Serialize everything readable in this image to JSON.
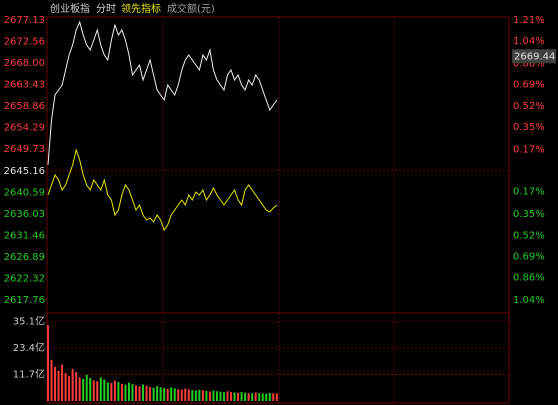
{
  "chart_data": [
    {
      "type": "line",
      "title": "创业板指",
      "subtitle": "分时",
      "current_price": 2669.44,
      "up_color": "#ff3c3c",
      "down_color": "#22cc22",
      "flat_color": "#e0e0e0",
      "ylim": [
        2617.76,
        2677.13
      ],
      "yticks": [
        2617.76,
        2622.32,
        2626.89,
        2631.46,
        2636.03,
        2640.59,
        2645.16,
        2649.73,
        2654.29,
        2658.86,
        2663.43,
        {
          "value": 2668,
          "label": "2668.00"
        },
        2672.56,
        2677.13
      ],
      "y2lim": [
        -1.04,
        1.21
      ],
      "y2ticks": [
        {
          "value": -1.04,
          "label": "1.04%"
        },
        {
          "value": -0.86,
          "label": "0.86%"
        },
        {
          "value": -0.69,
          "label": "0.69%"
        },
        {
          "value": -0.52,
          "label": "0.52%"
        },
        {
          "value": -0.35,
          "label": "0.35%"
        },
        {
          "value": -0.17,
          "label": "0.17%"
        },
        {
          "value": 0.17,
          "label": "0.17%"
        },
        {
          "value": 0.35,
          "label": "0.35%"
        },
        {
          "value": 0.52,
          "label": "0.52%"
        },
        {
          "value": 0.69,
          "label": "0.69%"
        },
        {
          "value": 0.86,
          "label": "0.86%"
        },
        {
          "value": 1.04,
          "label": "1.04%"
        },
        {
          "value": 1.21,
          "label": "1.21%"
        }
      ],
      "series": [
        {
          "color": "#f0f0f0",
          "values": [
            2646.39,
            2655.93,
            2661.23,
            2662.29,
            2663.35,
            2666.53,
            2669.71,
            2671.83,
            2675.01,
            2676.71,
            2673.95,
            2671.83,
            2670.77,
            2672.89,
            2675.01,
            2671.83,
            2669.71,
            2668.65,
            2672.89,
            2676.07,
            2673.95,
            2675.01,
            2672.89,
            2669.71,
            2665.47,
            2666.53,
            2667.59,
            2664.41,
            2666.53,
            2668.65,
            2665.47,
            2662.29,
            2661.23,
            2660.17,
            2663.35,
            2662.29,
            2661.23,
            2663.35,
            2666.53,
            2668.65,
            2669.71,
            2668.65,
            2667.59,
            2666.53,
            2669.71,
            2668.65,
            2670.77,
            2666.53,
            2664.41,
            2663.35,
            2662.29,
            2665.47,
            2666.53,
            2664.41,
            2665.47,
            2663.35,
            2662.29,
            2664.41,
            2663.35,
            2665.47,
            2664.41,
            2662.29,
            2660.17,
            2658.05,
            2659.11,
            2660.17
          ]
        },
        {
          "name": "领先指标",
          "color": "#e8e800",
          "values": [
            2640.03,
            2642.15,
            2644.27,
            2643.21,
            2641.09,
            2642.15,
            2644.27,
            2646.39,
            2649.57,
            2647.45,
            2644.27,
            2642.15,
            2641.09,
            2643.21,
            2642.15,
            2641.09,
            2643.21,
            2640.03,
            2638.97,
            2635.79,
            2636.85,
            2640.03,
            2642.15,
            2641.09,
            2638.97,
            2636.85,
            2637.91,
            2635.79,
            2634.73,
            2635.15,
            2634.31,
            2635.79,
            2634.73,
            2632.61,
            2633.67,
            2635.79,
            2636.85,
            2637.91,
            2638.97,
            2637.91,
            2640.03,
            2638.97,
            2640.67,
            2640.03,
            2641.09,
            2638.97,
            2640.03,
            2641.51,
            2640.03,
            2638.97,
            2637.91,
            2638.97,
            2640.03,
            2641.09,
            2638.97,
            2637.91,
            2641.09,
            2642.15,
            2641.09,
            2640.03,
            2638.97,
            2637.91,
            2636.85,
            2636.43,
            2637.27,
            2637.91
          ]
        }
      ]
    },
    {
      "type": "bar",
      "title": "成交额(元)",
      "ylim": [
        0,
        38.9
      ],
      "yticks": [
        {
          "value": 11.7,
          "label": "11.7亿"
        },
        {
          "value": 23.4,
          "label": "23.4亿"
        },
        {
          "value": 35.1,
          "label": "35.1亿"
        }
      ],
      "values": [
        33.5,
        18.2,
        15.1,
        13.4,
        16.0,
        12.3,
        11.1,
        14.2,
        12.8,
        10.5,
        9.8,
        11.6,
        10.2,
        9.1,
        8.7,
        10.4,
        9.5,
        8.2,
        7.9,
        9.0,
        8.4,
        7.6,
        7.2,
        8.1,
        7.5,
        6.9,
        6.5,
        7.3,
        6.8,
        6.2,
        5.9,
        6.6,
        6.1,
        5.7,
        5.4,
        6.0,
        5.6,
        5.2,
        5.0,
        5.5,
        5.1,
        4.8,
        4.6,
        5.0,
        4.7,
        4.4,
        4.2,
        4.6,
        4.3,
        4.1,
        3.9,
        4.3,
        4.0,
        3.8,
        3.6,
        4.0,
        3.7,
        3.5,
        3.4,
        3.8,
        3.5,
        3.3,
        3.2,
        3.6,
        3.4,
        3.3
      ]
    }
  ]
}
